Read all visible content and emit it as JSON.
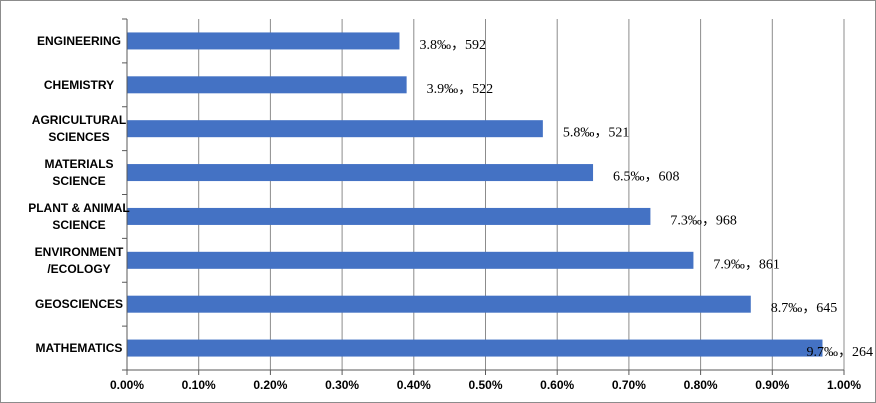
{
  "chart_data": {
    "type": "bar",
    "orientation": "horizontal",
    "categories": [
      "ENGINEERING",
      "CHEMISTRY",
      "AGRICULTURAL SCIENCES",
      "MATERIALS SCIENCE",
      "PLANT & ANIMAL SCIENCE",
      "ENVIRONMENT /ECOLOGY",
      "GEOSCIENCES",
      "MATHEMATICS"
    ],
    "category_lines": [
      [
        "ENGINEERING"
      ],
      [
        "CHEMISTRY"
      ],
      [
        "AGRICULTURAL",
        "SCIENCES"
      ],
      [
        "MATERIALS",
        "SCIENCE"
      ],
      [
        "PLANT & ANIMAL",
        "SCIENCE"
      ],
      [
        "ENVIRONMENT",
        "/ECOLOGY"
      ],
      [
        "GEOSCIENCES"
      ],
      [
        "MATHEMATICS"
      ]
    ],
    "values": [
      0.38,
      0.39,
      0.58,
      0.65,
      0.73,
      0.79,
      0.87,
      0.97
    ],
    "data_labels": [
      "3.8‰，592",
      "3.9‰，522",
      "5.8‰，521",
      "6.5‰，608",
      "7.3‰，968",
      "7.9‰，861",
      "8.7‰，645",
      "9.7‰，264"
    ],
    "x_ticks": [
      "0.00%",
      "0.10%",
      "0.20%",
      "0.30%",
      "0.40%",
      "0.50%",
      "0.60%",
      "0.70%",
      "0.80%",
      "0.90%",
      "1.00%"
    ],
    "xlim": [
      0,
      1.0
    ],
    "x_unit": "%",
    "grid": "vertical",
    "legend": "none",
    "bar_color": "#4472c4",
    "grid_color": "#8c8c8c",
    "title": "",
    "xlabel": "",
    "ylabel": ""
  }
}
